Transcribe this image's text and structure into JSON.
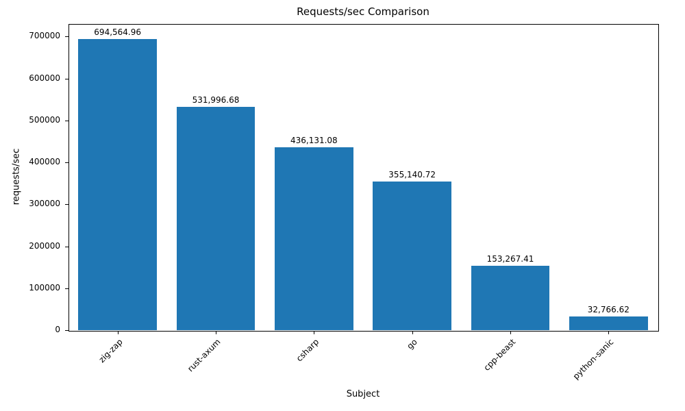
{
  "chart_data": {
    "type": "bar",
    "title": "Requests/sec Comparison",
    "xlabel": "Subject",
    "ylabel": "requests/sec",
    "categories": [
      "zig-zap",
      "rust-axum",
      "csharp",
      "go",
      "cpp-beast",
      "python-sanic"
    ],
    "values": [
      694564.96,
      531996.68,
      436131.08,
      355140.72,
      153267.41,
      32766.62
    ],
    "value_labels": [
      "694,564.96",
      "531,996.68",
      "436,131.08",
      "355,140.72",
      "153,267.41",
      "32,766.62"
    ],
    "bar_color": "#1f77b4",
    "ylim": [
      0,
      730000
    ],
    "yticks": [
      0,
      100000,
      200000,
      300000,
      400000,
      500000,
      600000,
      700000
    ],
    "grid": false,
    "legend_position": "none"
  }
}
